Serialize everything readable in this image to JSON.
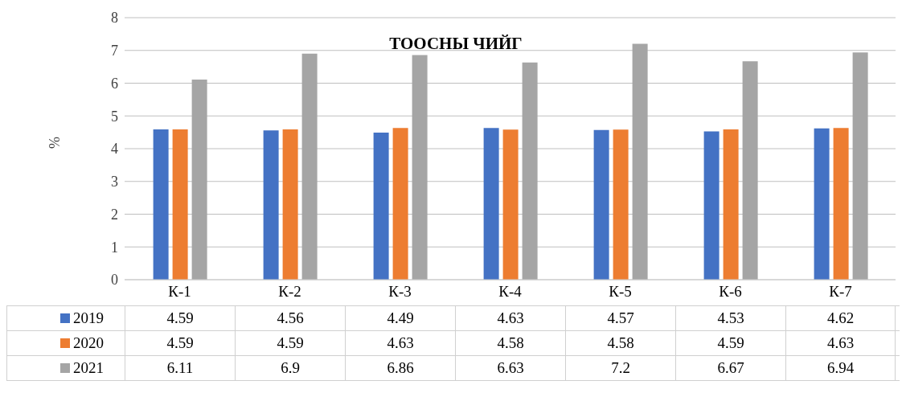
{
  "chart_data": {
    "type": "bar",
    "title": "ТООСНЫ ЧИЙГ",
    "ylabel": "%",
    "categories": [
      "К-1",
      "К-2",
      "К-3",
      "К-4",
      "К-5",
      "К-6",
      "К-7"
    ],
    "series": [
      {
        "name": "2019",
        "color": "#4472c4",
        "values": [
          4.59,
          4.56,
          4.49,
          4.63,
          4.57,
          4.53,
          4.62
        ]
      },
      {
        "name": "2020",
        "color": "#ed7d31",
        "values": [
          4.59,
          4.59,
          4.63,
          4.58,
          4.58,
          4.59,
          4.63
        ]
      },
      {
        "name": "2021",
        "color": "#a5a5a5",
        "values": [
          6.11,
          6.9,
          6.86,
          6.63,
          7.2,
          6.67,
          6.94
        ]
      }
    ],
    "ylim": [
      0,
      8
    ],
    "yticks": [
      0,
      1,
      2,
      3,
      4,
      5,
      6,
      7,
      8
    ],
    "grid": "y",
    "legend": "bottom",
    "data_labels": true
  }
}
